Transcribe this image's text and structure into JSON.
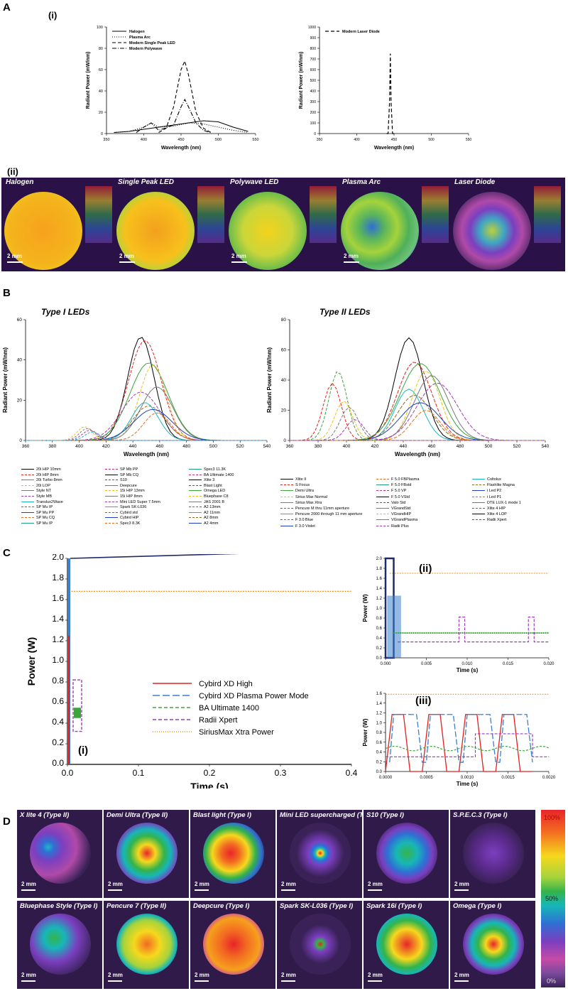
{
  "panels": {
    "A": {
      "label": "A",
      "sub_i": "(i)",
      "sub_ii": "(ii)"
    },
    "B": {
      "label": "B"
    },
    "C": {
      "label": "C",
      "sub_i": "(i)",
      "sub_ii": "(ii)",
      "sub_iii": "(iii)"
    },
    "D": {
      "label": "D"
    }
  },
  "chart_data": [
    {
      "id": "A-i-left",
      "type": "line",
      "xlabel": "Wavelength (nm)",
      "ylabel": "Radiant Power (mW/nm)",
      "xlim": [
        350,
        550
      ],
      "ylim": [
        0,
        100
      ],
      "xticks": [
        "350",
        "400",
        "450",
        "500",
        "550"
      ],
      "yticks": [
        "0",
        "20",
        "40",
        "60",
        "80",
        "100"
      ],
      "legend_position": "top-left",
      "series": [
        {
          "name": "Halogen",
          "style": "solid",
          "x": [
            360,
            380,
            400,
            420,
            440,
            460,
            480,
            500,
            520,
            540
          ],
          "values": [
            1,
            2,
            4,
            6,
            8,
            10,
            12,
            11,
            6,
            2
          ]
        },
        {
          "name": "Plasma Arc",
          "style": "dotted",
          "x": [
            360,
            380,
            400,
            410,
            420,
            440,
            460,
            480,
            500,
            520,
            540
          ],
          "values": [
            1,
            2,
            6,
            10,
            6,
            7,
            10,
            9,
            6,
            3,
            1
          ]
        },
        {
          "name": "Modern Single Peak LED",
          "style": "dashed",
          "x": [
            420,
            430,
            440,
            450,
            455,
            460,
            470,
            480,
            490
          ],
          "values": [
            1,
            5,
            25,
            60,
            68,
            55,
            20,
            5,
            1
          ]
        },
        {
          "name": "Modern Polywave",
          "style": "dash-dot",
          "x": [
            390,
            400,
            410,
            420,
            440,
            450,
            455,
            460,
            470,
            480,
            490
          ],
          "values": [
            1,
            6,
            10,
            3,
            8,
            25,
            32,
            25,
            10,
            3,
            1
          ]
        }
      ]
    },
    {
      "id": "A-i-right",
      "type": "line",
      "xlabel": "Wavelength (nm)",
      "ylabel": "Radiant Power (mW/nm)",
      "xlim": [
        350,
        550
      ],
      "ylim": [
        0,
        1000
      ],
      "xticks": [
        "350",
        "400",
        "450",
        "500",
        "550"
      ],
      "yticks": [
        "0",
        "100",
        "200",
        "300",
        "400",
        "500",
        "600",
        "700",
        "800",
        "900",
        "1000"
      ],
      "legend_position": "top-left",
      "series": [
        {
          "name": "Modern Laser Diode",
          "style": "dashed",
          "x": [
            440,
            442,
            444,
            445,
            446,
            448,
            450
          ],
          "values": [
            0,
            0,
            300,
            750,
            300,
            0,
            0
          ]
        }
      ]
    },
    {
      "id": "B-left",
      "type": "line",
      "title": "Type I LEDs",
      "xlabel": "Wavelength (nm)",
      "ylabel": "Radiant Power (mW/nm)",
      "xlim": [
        360,
        540
      ],
      "ylim": [
        0,
        70
      ],
      "xticks": [
        "360",
        "380",
        "400",
        "420",
        "440",
        "460",
        "480",
        "500",
        "520",
        "540"
      ],
      "yticks": [
        "0",
        "20",
        "40",
        "60"
      ],
      "peaks": [
        60,
        58,
        45,
        44,
        31,
        28,
        22,
        20,
        18,
        16
      ]
    },
    {
      "id": "B-right",
      "type": "line",
      "title": "Type II LEDs",
      "xlabel": "Wavelength (nm)",
      "ylabel": "Radiant Power (mW/nm)",
      "xlim": [
        360,
        540
      ],
      "ylim": [
        0,
        80
      ],
      "xticks": [
        "360",
        "380",
        "400",
        "420",
        "440",
        "460",
        "480",
        "500",
        "520",
        "540"
      ],
      "yticks": [
        "0",
        "20",
        "40",
        "60",
        "80"
      ],
      "peaks": [
        68,
        52,
        51,
        46,
        43,
        38,
        34,
        30,
        25,
        20
      ]
    },
    {
      "id": "C-i",
      "type": "line",
      "xlabel": "Time (s)",
      "ylabel": "Power (W)",
      "xlim": [
        0,
        0.4
      ],
      "ylim": [
        0,
        2.0
      ],
      "xticks": [
        "0.0",
        "0.1",
        "0.2",
        "0.3",
        "0.4"
      ],
      "yticks": [
        "0.0",
        "0.2",
        "0.4",
        "0.6",
        "0.8",
        "1.0",
        "1.2",
        "1.4",
        "1.6",
        "1.8",
        "2.0"
      ],
      "series": [
        {
          "name": "Cybird XD High",
          "style": "solid",
          "color": "#e32020"
        },
        {
          "name": "Cybird XD Plasma Power Mode",
          "style": "long-dash",
          "color": "#3a7fd0"
        },
        {
          "name": "BA Ultimate 1400",
          "style": "dashed",
          "color": "#3aa63a"
        },
        {
          "name": "Radii Xpert",
          "style": "dashed",
          "color": "#9b3cb8"
        },
        {
          "name": "SiriusMax Xtra Power",
          "style": "dotted",
          "color": "#f0901e",
          "level": 1.68
        }
      ]
    },
    {
      "id": "C-ii",
      "type": "line",
      "xlabel": "Time (s)",
      "ylabel": "Power (W)",
      "xlim": [
        0,
        0.02
      ],
      "ylim": [
        0,
        2.0
      ],
      "xticks": [
        "0.000",
        "0.005",
        "0.010",
        "0.015",
        "0.020"
      ],
      "yticks": [
        "0.0",
        "0.2",
        "0.4",
        "0.6",
        "0.8",
        "1.0",
        "1.2",
        "1.4",
        "1.6",
        "1.8",
        "2.0"
      ]
    },
    {
      "id": "C-iii",
      "type": "line",
      "xlabel": "Time (s)",
      "ylabel": "Power (W)",
      "xlim": [
        0,
        0.002
      ],
      "ylim": [
        0,
        1.7
      ],
      "xticks": [
        "0.0000",
        "0.0005",
        "0.0010",
        "0.0015",
        "0.0020"
      ],
      "yticks": [
        "0.0",
        "0.2",
        "0.4",
        "0.6",
        "0.8",
        "1.0",
        "1.2",
        "1.4",
        "1.6"
      ]
    }
  ],
  "beam_profiles_A": [
    {
      "title": "Halogen",
      "scale": "2 mm"
    },
    {
      "title": "Single Peak LED",
      "scale": "2 mm"
    },
    {
      "title": "Polywave LED",
      "scale": "2 mm"
    },
    {
      "title": "Plasma Arc",
      "scale": "2 mm"
    },
    {
      "title": "Laser Diode",
      "scale": ""
    }
  ],
  "legend_B_left": [
    "20i HIP 10mm",
    "20i HIP 8mm",
    "20i Turbo 8mm",
    "20i LOP",
    "Style NT",
    "Style MB",
    "Translux2Wave",
    "SP Mu IP",
    "SP Mu PP",
    "SP Mu CQ",
    "SP Mu IP",
    "SP Mb PP",
    "SP Mb CQ",
    "S10",
    "Deepcure",
    "15i HIP 13mm",
    "15i HIP 8mm",
    "Mini LED Super 7.5mm",
    "Spark SK-L036",
    "Cybird std",
    "Cybird HIP",
    "Spec3 8.3K",
    "Spec3 11.3K",
    "BA Ultimate 1400",
    "Xlite 3",
    "Blast Light",
    "Omega LED",
    "Bluephase C8",
    "JAS 2001 B",
    "A2 13mm",
    "A2 11mm",
    "A2 8mm",
    "A2 4mm"
  ],
  "legend_B_right": [
    "Xlite II",
    "S Focus",
    "Demi Ultra",
    "Sirius Max Normal",
    "Sirius Max Xtra",
    "Pencure M thru 11mm aperture",
    "Pencure 2000 through 11 mm aperture",
    "F 3.0 Blue",
    "F 3.0 Violet",
    "F 5.0 FBPlasma",
    "F 5.0 FBstd",
    "F 5.0 VP",
    "F 5.0 VStd",
    "Valo Std",
    "VGrandStd",
    "VGrandHIP",
    "VGrandPlasma",
    "Radii Plus",
    "Coltolux",
    "Flashlite Magna",
    "i Led P2",
    "i Led P1",
    "DTE LUX-1 mode 1",
    "Xlite 4 HIP",
    "Xlite 4 LOP",
    "Radii Xpert"
  ],
  "beam_profiles_D": [
    {
      "title": "X lite 4 (Type II)",
      "scale": "2 mm"
    },
    {
      "title": "Demi Ultra (Type II)",
      "scale": "2 mm"
    },
    {
      "title": "Blast light (Type I)",
      "scale": "2 mm"
    },
    {
      "title": "Mini LED supercharged (Type I)",
      "scale": "2 mm"
    },
    {
      "title": "S10 (Type I)",
      "scale": "2 mm"
    },
    {
      "title": "S.P.E.C.3 (Type I)",
      "scale": "2 mm"
    },
    {
      "title": "Bluephase Style (Type I)",
      "scale": "2 mm"
    },
    {
      "title": "Pencure 7 (Type II)",
      "scale": "2 mm"
    },
    {
      "title": "Deepcure (Type I)",
      "scale": "2 mm"
    },
    {
      "title": "Spark SK-L036 (Type I)",
      "scale": "2 mm"
    },
    {
      "title": "Spark 16i (Type I)",
      "scale": "2 mm"
    },
    {
      "title": "Omega (Type I)",
      "scale": "2 mm"
    }
  ],
  "colorbar": {
    "top": "100%",
    "mid": "50%",
    "bottom": "0%"
  },
  "colors": {
    "strip_bg": "#2a1148",
    "tile_bg": "#2f1a4a"
  }
}
